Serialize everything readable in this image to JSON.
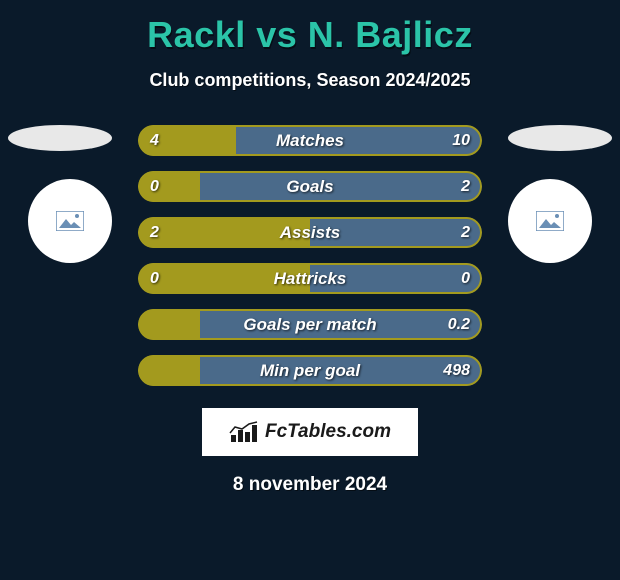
{
  "title": "Rackl vs N. Bajlicz",
  "subtitle": "Club competitions, Season 2024/2025",
  "date": "8 november 2024",
  "logo_text": "FcTables.com",
  "colors": {
    "background": "#0a1a2a",
    "title": "#2bc4a8",
    "left_fill": "#a39a1e",
    "right_fill": "#4a6a8a",
    "left_border": "#a39a1e",
    "right_border": "#4a6a8a"
  },
  "placeholder_icon_color": "#6a8fb5",
  "stats": [
    {
      "label": "Matches",
      "left_val": "4",
      "right_val": "10",
      "left_pct": 28.6,
      "right_pct": 71.4
    },
    {
      "label": "Goals",
      "left_val": "0",
      "right_val": "2",
      "left_pct": 18,
      "right_pct": 82
    },
    {
      "label": "Assists",
      "left_val": "2",
      "right_val": "2",
      "left_pct": 50,
      "right_pct": 50
    },
    {
      "label": "Hattricks",
      "left_val": "0",
      "right_val": "0",
      "left_pct": 50,
      "right_pct": 50
    },
    {
      "label": "Goals per match",
      "left_val": "",
      "right_val": "0.2",
      "left_pct": 18,
      "right_pct": 82
    },
    {
      "label": "Min per goal",
      "left_val": "",
      "right_val": "498",
      "left_pct": 18,
      "right_pct": 82
    }
  ]
}
